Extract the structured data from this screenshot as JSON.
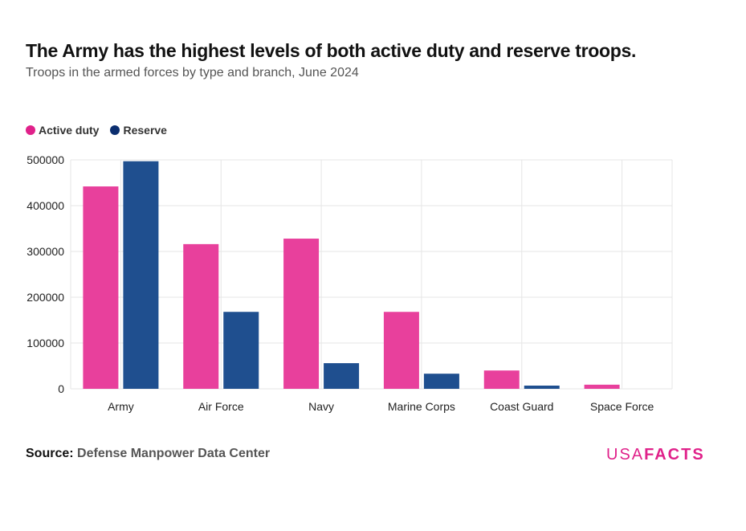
{
  "title": "The Army has the highest levels of both active duty and reserve troops.",
  "subtitle": "Troops in the armed forces by type and branch, June 2024",
  "source_label": "Source:",
  "source_value": "Defense Manpower Data Center",
  "logo": {
    "left": "USA",
    "right": "FACTS"
  },
  "chart_data": {
    "type": "bar",
    "categories": [
      "Army",
      "Air Force",
      "Navy",
      "Marine Corps",
      "Coast Guard",
      "Space Force"
    ],
    "series": [
      {
        "name": "Active duty",
        "color": "#e8409c",
        "values": [
          442000,
          316000,
          328000,
          168000,
          40000,
          9000
        ]
      },
      {
        "name": "Reserve",
        "color": "#1f4f8f",
        "values": [
          497000,
          168000,
          56000,
          33000,
          7000,
          0
        ]
      }
    ],
    "legend_colors": [
      "#e0218a",
      "#0b2e6f"
    ],
    "ylim": [
      0,
      500000
    ],
    "yticks": [
      "0",
      "100000",
      "200000",
      "300000",
      "400000",
      "500000"
    ],
    "grid": true,
    "legend": "top-left"
  }
}
